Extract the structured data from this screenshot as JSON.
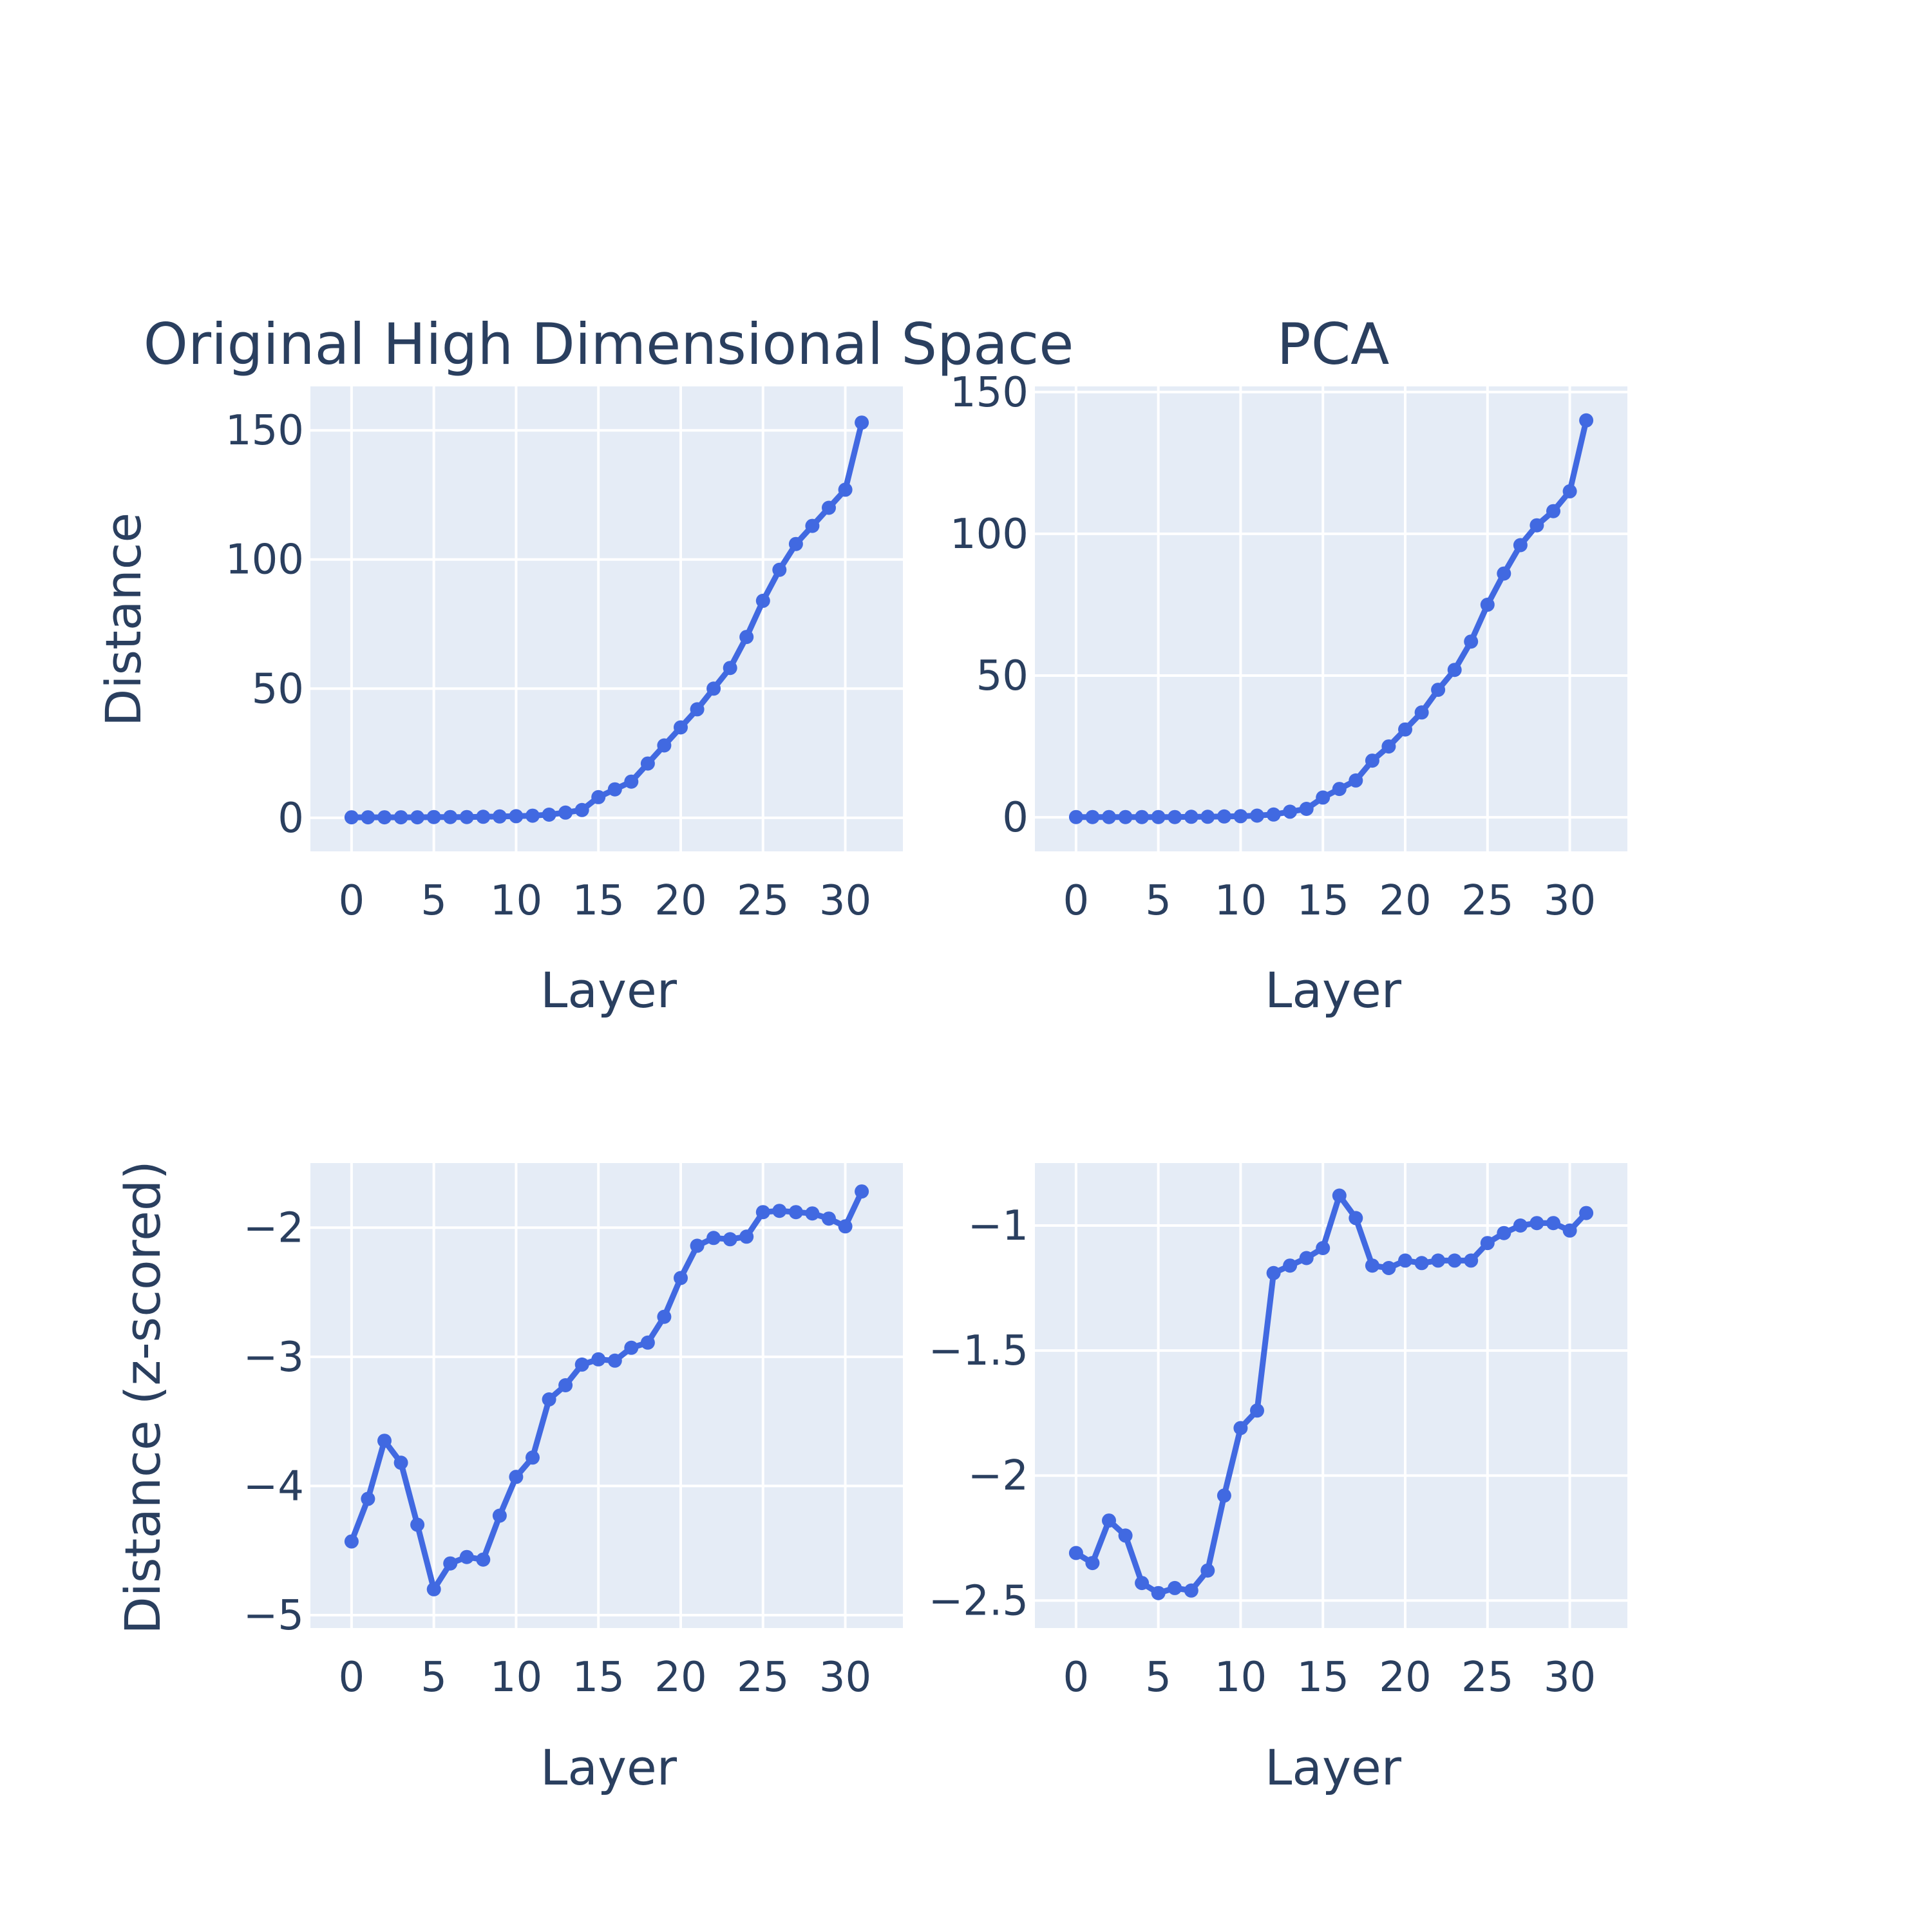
{
  "colors": {
    "line": "#4169e1",
    "plot_bg": "#e5ecf6",
    "grid": "#ffffff",
    "text": "#2a3f5f",
    "paper": "#ffffff"
  },
  "chart_data": [
    {
      "type": "line",
      "title": "Original High Dimensional Space",
      "xlabel": "Layer",
      "ylabel": "Distance",
      "xlim": [
        -2.5,
        33.5
      ],
      "ylim": [
        -13,
        167
      ],
      "xticks": [
        0,
        5,
        10,
        15,
        20,
        25,
        30
      ],
      "yticks": [
        0,
        50,
        100,
        150
      ],
      "ytick_labels": [
        "0",
        "50",
        "100",
        "150"
      ],
      "x": [
        0,
        1,
        2,
        3,
        4,
        5,
        6,
        7,
        8,
        9,
        10,
        11,
        12,
        13,
        14,
        15,
        16,
        17,
        18,
        19,
        20,
        21,
        22,
        23,
        24,
        25,
        26,
        27,
        28,
        29,
        30,
        31
      ],
      "series": [
        {
          "values": [
            0.2,
            0.2,
            0.2,
            0.2,
            0.2,
            0.3,
            0.3,
            0.3,
            0.4,
            0.5,
            0.6,
            0.8,
            1.2,
            2,
            3,
            8,
            11,
            14,
            21,
            28,
            35,
            42,
            50,
            58,
            70,
            84,
            96,
            106,
            113,
            120,
            127,
            153
          ]
        }
      ]
    },
    {
      "type": "line",
      "title": "PCA",
      "xlabel": "Layer",
      "ylabel": "",
      "xlim": [
        -2.5,
        33.5
      ],
      "ylim": [
        -12,
        152
      ],
      "xticks": [
        0,
        5,
        10,
        15,
        20,
        25,
        30
      ],
      "yticks": [
        0,
        50,
        100,
        150
      ],
      "ytick_labels": [
        "0",
        "50",
        "100",
        "150"
      ],
      "x": [
        0,
        1,
        2,
        3,
        4,
        5,
        6,
        7,
        8,
        9,
        10,
        11,
        12,
        13,
        14,
        15,
        16,
        17,
        18,
        19,
        20,
        21,
        22,
        23,
        24,
        25,
        26,
        27,
        28,
        29,
        30,
        31
      ],
      "series": [
        {
          "values": [
            0.1,
            0.1,
            0.1,
            0.1,
            0.1,
            0.1,
            0.1,
            0.2,
            0.2,
            0.3,
            0.4,
            0.6,
            1,
            2,
            3,
            7,
            10,
            13,
            20,
            25,
            31,
            37,
            45,
            52,
            62,
            75,
            86,
            96,
            103,
            108,
            115,
            140
          ]
        }
      ]
    },
    {
      "type": "line",
      "title": "",
      "xlabel": "Layer",
      "ylabel": "Distance (z-scored)",
      "xlim": [
        -2.5,
        33.5
      ],
      "ylim": [
        -5.1,
        -1.5
      ],
      "xticks": [
        0,
        5,
        10,
        15,
        20,
        25,
        30
      ],
      "yticks": [
        -5,
        -4,
        -3,
        -2
      ],
      "ytick_labels": [
        "−5",
        "−4",
        "−3",
        "−2"
      ],
      "x": [
        0,
        1,
        2,
        3,
        4,
        5,
        6,
        7,
        8,
        9,
        10,
        11,
        12,
        13,
        14,
        15,
        16,
        17,
        18,
        19,
        20,
        21,
        22,
        23,
        24,
        25,
        26,
        27,
        28,
        29,
        30,
        31
      ],
      "series": [
        {
          "values": [
            -4.43,
            -4.1,
            -3.65,
            -3.82,
            -4.3,
            -4.8,
            -4.6,
            -4.55,
            -4.57,
            -4.23,
            -3.93,
            -3.78,
            -3.33,
            -3.22,
            -3.06,
            -3.02,
            -3.03,
            -2.93,
            -2.89,
            -2.69,
            -2.39,
            -2.14,
            -2.08,
            -2.09,
            -2.07,
            -1.88,
            -1.87,
            -1.88,
            -1.89,
            -1.93,
            -1.99,
            -1.72
          ]
        }
      ]
    },
    {
      "type": "line",
      "title": "",
      "xlabel": "Layer",
      "ylabel": "",
      "xlim": [
        -2.5,
        33.5
      ],
      "ylim": [
        -2.61,
        -0.75
      ],
      "xticks": [
        0,
        5,
        10,
        15,
        20,
        25,
        30
      ],
      "yticks": [
        -2.5,
        -2,
        -1.5,
        -1
      ],
      "ytick_labels": [
        "−2.5",
        "−2",
        "−1.5",
        "−1"
      ],
      "x": [
        0,
        1,
        2,
        3,
        4,
        5,
        6,
        7,
        8,
        9,
        10,
        11,
        12,
        13,
        14,
        15,
        16,
        17,
        18,
        19,
        20,
        21,
        22,
        23,
        24,
        25,
        26,
        27,
        28,
        29,
        30,
        31
      ],
      "series": [
        {
          "values": [
            -2.31,
            -2.35,
            -2.18,
            -2.24,
            -2.43,
            -2.47,
            -2.45,
            -2.46,
            -2.38,
            -2.08,
            -1.81,
            -1.74,
            -1.19,
            -1.16,
            -1.13,
            -1.09,
            -0.88,
            -0.97,
            -1.16,
            -1.17,
            -1.14,
            -1.15,
            -1.14,
            -1.14,
            -1.14,
            -1.07,
            -1.03,
            -1.0,
            -0.99,
            -0.99,
            -1.02,
            -0.95
          ]
        }
      ]
    }
  ]
}
